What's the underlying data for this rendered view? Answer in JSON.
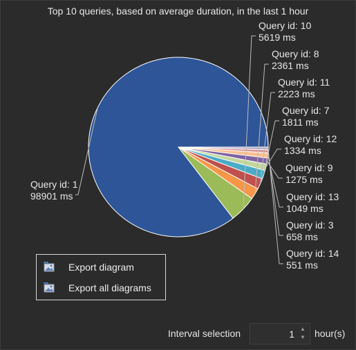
{
  "title": "Top 10 queries, based on average duration, in the last 1 hour",
  "chart_data": {
    "type": "pie",
    "categories": [
      "Query id: 1",
      "Query id: 10",
      "Query id: 8",
      "Query id: 11",
      "Query id: 7",
      "Query id: 12",
      "Query id: 9",
      "Query id: 13",
      "Query id: 3",
      "Query id: 14"
    ],
    "values": [
      98901,
      5619,
      2361,
      2223,
      1811,
      1334,
      1275,
      1049,
      658,
      551
    ],
    "value_labels": [
      "98901 ms",
      "5619 ms",
      "2361 ms",
      "2223 ms",
      "1811 ms",
      "1334 ms",
      "1275 ms",
      "1049 ms",
      "658 ms",
      "551 ms"
    ],
    "colors": [
      "#2e5597",
      "#9bbb59",
      "#f79646",
      "#c0504d",
      "#4bacc6",
      "#c3d69b",
      "#8064a2",
      "#fac090",
      "#d99694",
      "#b7a8c9"
    ]
  },
  "menu": {
    "export_diagram": "Export diagram",
    "export_all": "Export all diagrams"
  },
  "interval": {
    "label": "Interval selection",
    "value": "1",
    "unit": "hour(s)"
  }
}
